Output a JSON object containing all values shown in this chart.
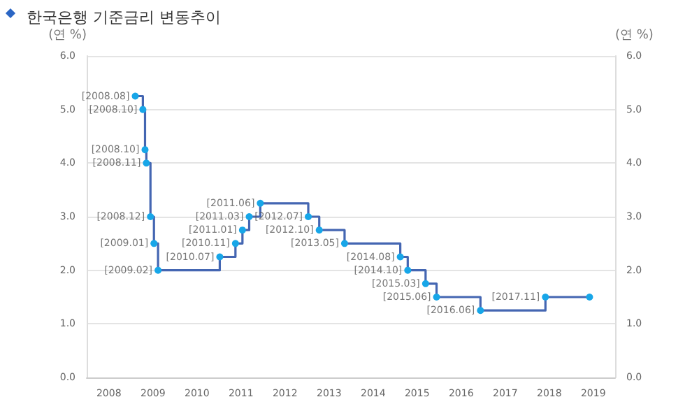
{
  "chart_data": {
    "type": "step",
    "title": "한국은행 기준금리 변동추이",
    "ylabel": "(연 %)",
    "y2label": "(연 %)",
    "x": [
      "2008-08-07",
      "2008-10-09",
      "2008-10-27",
      "2008-11-07",
      "2008-12-11",
      "2009-01-09",
      "2009-02-12",
      "2010-07-09",
      "2010-11-16",
      "2011-01-13",
      "2011-03-10",
      "2011-06-10",
      "2012-07-12",
      "2012-10-11",
      "2013-05-09",
      "2014-08-14",
      "2014-10-15",
      "2015-03-12",
      "2015-06-11",
      "2016-06-09",
      "2017-11-30",
      "2018-12-01"
    ],
    "series": [
      {
        "color": "#4466b2",
        "colors": [
          "#17a6e8",
          "#17a6e8",
          "#17a6e8",
          "#17a6e8",
          "#17a6e8",
          "#17a6e8",
          "#17a6e8",
          "#17a6e8",
          "#17a6e8",
          "#17a6e8",
          "#17a6e8",
          "#17a6e8",
          "#17a6e8",
          "#17a6e8",
          "#17a6e8",
          "#17a6e8",
          "#17a6e8",
          "#17a6e8",
          "#17a6e8",
          "#17a6e8",
          "#17a6e8",
          "#17a6e8"
        ],
        "values": [
          5.25,
          5.0,
          4.25,
          4.0,
          3.0,
          2.5,
          2.0,
          2.25,
          2.5,
          2.75,
          3.0,
          3.25,
          3.0,
          2.75,
          2.5,
          2.25,
          2.0,
          1.75,
          1.5,
          1.25,
          1.5,
          1.5
        ]
      }
    ],
    "annotations": [
      {
        "text": "[2008.08]",
        "x": "2008-08-07",
        "y": 5.25
      },
      {
        "text": "[2008.10]",
        "x": "2008-10-09",
        "y": 5.0
      },
      {
        "text": "[2008.10]",
        "x": "2008-10-27",
        "y": 4.25
      },
      {
        "text": "[2008.11]",
        "x": "2008-11-07",
        "y": 4.0
      },
      {
        "text": "[2008.12]",
        "x": "2008-12-11",
        "y": 3.0
      },
      {
        "text": "[2009.01]",
        "x": "2009-01-09",
        "y": 2.5
      },
      {
        "text": "[2009.02]",
        "x": "2009-02-12",
        "y": 2.0
      },
      {
        "text": "[2010.07]",
        "x": "2010-07-09",
        "y": 2.25
      },
      {
        "text": "[2010.11]",
        "x": "2010-11-16",
        "y": 2.5
      },
      {
        "text": "[2011.01]",
        "x": "2011-01-13",
        "y": 2.75
      },
      {
        "text": "[2011.03]",
        "x": "2011-03-10",
        "y": 3.0
      },
      {
        "text": "[2011.06]",
        "x": "2011-06-10",
        "y": 3.25
      },
      {
        "text": "[2012.07]",
        "x": "2012-07-12",
        "y": 3.0
      },
      {
        "text": "[2012.10]",
        "x": "2012-10-11",
        "y": 2.75
      },
      {
        "text": "[2013.05]",
        "x": "2013-05-09",
        "y": 2.5
      },
      {
        "text": "[2014.08]",
        "x": "2014-08-14",
        "y": 2.25
      },
      {
        "text": "[2014.10]",
        "x": "2014-10-15",
        "y": 2.0
      },
      {
        "text": "[2015.03]",
        "x": "2015-03-12",
        "y": 1.75
      },
      {
        "text": "[2015.06]",
        "x": "2015-06-11",
        "y": 1.5
      },
      {
        "text": "[2016.06]",
        "x": "2016-06-09",
        "y": 1.25
      },
      {
        "text": "[2017.11]",
        "x": "2017-11-30",
        "y": 1.5
      }
    ],
    "xlim": [
      "2007-07",
      "2019-07"
    ],
    "xticks": [
      "2008",
      "2009",
      "2010",
      "2011",
      "2012",
      "2013",
      "2014",
      "2015",
      "2016",
      "2017",
      "2018",
      "2019"
    ],
    "ylim": [
      0,
      6
    ],
    "yticks": [
      {
        "value": 0,
        "label": "0.0"
      },
      {
        "value": 1,
        "label": "1.0"
      },
      {
        "value": 2,
        "label": "2.0"
      },
      {
        "value": 3,
        "label": "3.0"
      },
      {
        "value": 4,
        "label": "4.0"
      },
      {
        "value": 5,
        "label": "5.0"
      },
      {
        "value": 6,
        "label": "6.0"
      }
    ],
    "y2lim": [
      0,
      6
    ],
    "y2ticks": [
      {
        "value": 0,
        "label": "0.0"
      },
      {
        "value": 1,
        "label": "1.0"
      },
      {
        "value": 2,
        "label": "2.0"
      },
      {
        "value": 3,
        "label": "3.0"
      },
      {
        "value": 4,
        "label": "4.0"
      },
      {
        "value": 5,
        "label": "5.0"
      },
      {
        "value": 6,
        "label": "6.0"
      }
    ],
    "grid": "y",
    "marker": "circle",
    "line_style": "solid"
  }
}
